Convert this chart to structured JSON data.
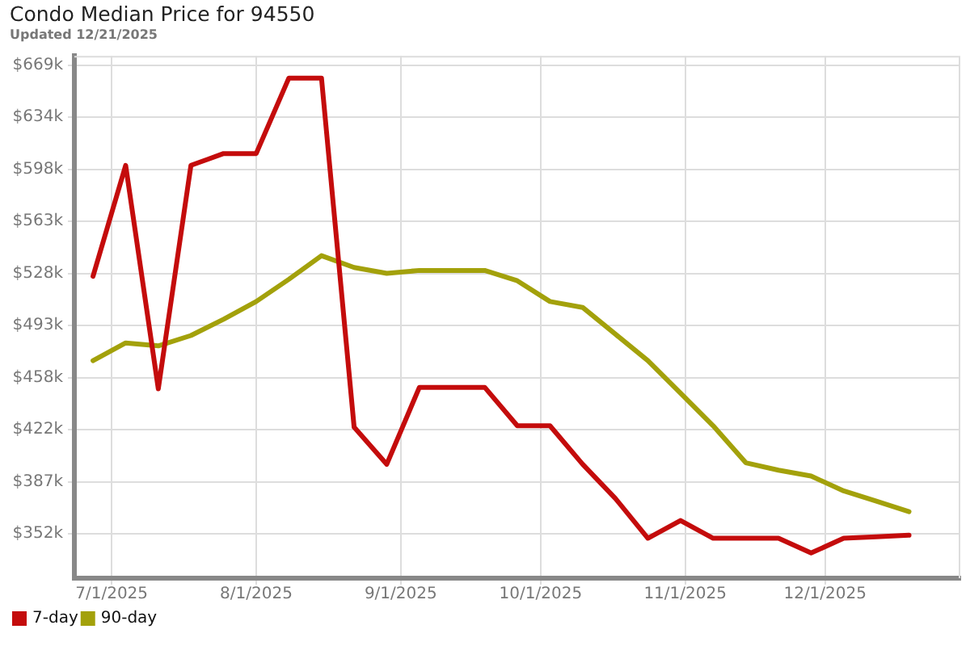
{
  "chart_data": {
    "type": "line",
    "title": "Condo Median Price for 94550",
    "subtitle": "Updated 12/21/2025",
    "x": [
      "2025-06-27",
      "2025-07-04",
      "2025-07-11",
      "2025-07-18",
      "2025-07-25",
      "2025-08-01",
      "2025-08-08",
      "2025-08-15",
      "2025-08-22",
      "2025-08-29",
      "2025-09-05",
      "2025-09-12",
      "2025-09-19",
      "2025-09-26",
      "2025-10-03",
      "2025-10-10",
      "2025-10-17",
      "2025-10-24",
      "2025-10-31",
      "2025-11-07",
      "2025-11-14",
      "2025-11-21",
      "2025-11-28",
      "2025-12-05",
      "2025-12-12",
      "2025-12-19"
    ],
    "series": [
      {
        "name": "7-day",
        "color": "#c40c0c",
        "values": [
          526,
          601,
          450,
          601,
          609,
          609,
          660,
          660,
          424,
          399,
          451,
          451,
          451,
          425,
          425,
          399,
          376,
          349,
          361,
          349,
          349,
          349,
          339,
          349,
          350,
          351
        ]
      },
      {
        "name": "90-day",
        "color": "#a3a10b",
        "values": [
          469,
          481,
          479,
          486,
          497,
          509,
          524,
          540,
          532,
          528,
          530,
          530,
          530,
          523,
          509,
          505,
          487,
          469,
          447,
          425,
          400,
          395,
          391,
          381,
          374,
          367
        ]
      }
    ],
    "xlim": [
      "2025-06-23",
      "2025-12-30"
    ],
    "xticks": [
      {
        "value": "2025-07-01",
        "label": "7/1/2025"
      },
      {
        "value": "2025-08-01",
        "label": "8/1/2025"
      },
      {
        "value": "2025-09-01",
        "label": "9/1/2025"
      },
      {
        "value": "2025-10-01",
        "label": "10/1/2025"
      },
      {
        "value": "2025-11-01",
        "label": "11/1/2025"
      },
      {
        "value": "2025-12-01",
        "label": "12/1/2025"
      }
    ],
    "ylim": [
      322,
      675
    ],
    "yticks": [
      {
        "value": 352,
        "label": "$352k"
      },
      {
        "value": 387.2,
        "label": "$387k"
      },
      {
        "value": 422.4,
        "label": "$422k"
      },
      {
        "value": 457.6,
        "label": "$458k"
      },
      {
        "value": 492.8,
        "label": "$493k"
      },
      {
        "value": 528,
        "label": "$528k"
      },
      {
        "value": 563.2,
        "label": "$563k"
      },
      {
        "value": 598.4,
        "label": "$598k"
      },
      {
        "value": 633.6,
        "label": "$634k"
      },
      {
        "value": 668.8,
        "label": "$669k"
      }
    ],
    "grid": true,
    "legend": "bottom left",
    "marker": "none",
    "line_style": "solid"
  }
}
